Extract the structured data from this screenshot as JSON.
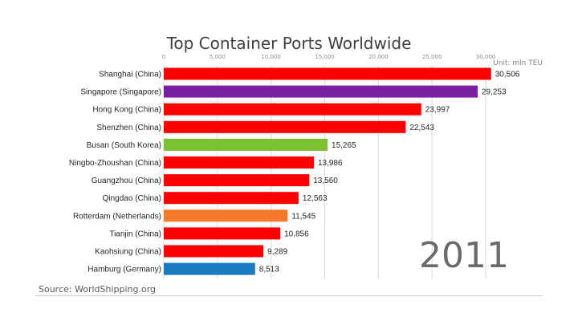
{
  "chart_data": {
    "type": "bar",
    "orientation": "horizontal",
    "title": "Top Container Ports Worldwide",
    "unit_label": "Unit: mln TEU",
    "year": "2011",
    "source": "Source: WorldShipping.org",
    "xlim": [
      0,
      30000
    ],
    "xticks": [
      0,
      5000,
      10000,
      15000,
      20000,
      25000,
      30000
    ],
    "xtick_labels": [
      "0",
      "5,000",
      "10,000",
      "15,000",
      "20,000",
      "25,000",
      "30,000"
    ],
    "grid": true,
    "categories": [
      "Shanghai (China)",
      "Singapore (Singapore)",
      "Hong Kong (China)",
      "Shenzhen (China)",
      "Busan (South Korea)",
      "Ningbo-Zhoushan (China)",
      "Guangzhou (China)",
      "Qingdao (China)",
      "Rotterdam (Netherlands)",
      "Tianjin (China)",
      "Kaohsiung (China)",
      "Hamburg (Germany)"
    ],
    "values": [
      30506,
      29253,
      23997,
      22543,
      15265,
      13986,
      13560,
      12563,
      11545,
      10856,
      9289,
      8513
    ],
    "value_labels": [
      "30,506",
      "29,253",
      "23,997",
      "22,543",
      "15,265",
      "13,986",
      "13,560",
      "12,563",
      "11,545",
      "10,856",
      "9,289",
      "8,513"
    ],
    "colors": [
      "#ff0000",
      "#7b1fa2",
      "#ff0000",
      "#ff0000",
      "#7cc130",
      "#ff0000",
      "#ff0000",
      "#ff0000",
      "#f47a2a",
      "#ff0000",
      "#ff0000",
      "#1a7ac2"
    ]
  }
}
